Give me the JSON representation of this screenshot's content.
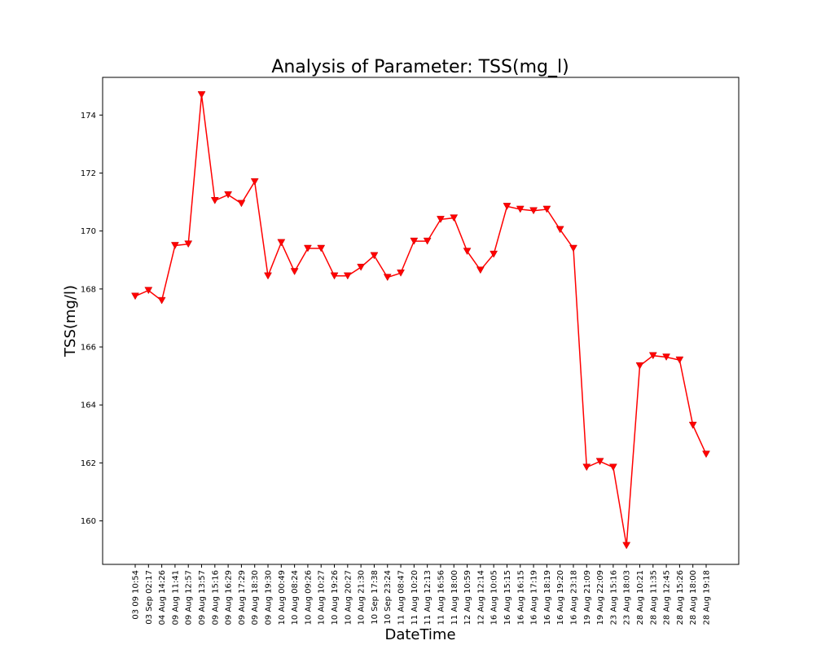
{
  "chart_data": {
    "type": "line",
    "title": "Analysis of Parameter: TSS(mg_l)",
    "xlabel": "DateTime",
    "ylabel": "TSS(mg/l)",
    "ylim": [
      158.5,
      175.3
    ],
    "yticks": [
      160,
      162,
      164,
      166,
      168,
      170,
      172,
      174
    ],
    "grid": false,
    "marker": "triangle-down",
    "colors": {
      "series": "#ff0000",
      "axes": "#000000",
      "background": "#ffffff"
    },
    "categories": [
      "03 09 10:54",
      "03 Sep 02:17",
      "04 Aug 14:26",
      "09 Aug 11:41",
      "09 Aug 12:57",
      "09 Aug 13:57",
      "09 Aug 15:16",
      "09 Aug 16:29",
      "09 Aug 17:29",
      "09 Aug 18:30",
      "09 Aug 19:30",
      "10 Aug 00:49",
      "10 Aug 08:24",
      "10 Aug 09:26",
      "10 Aug 10:27",
      "10 Aug 19:26",
      "10 Aug 20:27",
      "10 Aug 21:30",
      "10 Sep 17:38",
      "10 Sep 23:24",
      "11 Aug 08:47",
      "11 Aug 10:20",
      "11 Aug 12:13",
      "11 Aug 16:56",
      "11 Aug 18:00",
      "12 Aug 10:59",
      "12 Aug 12:14",
      "16 Aug 10:05",
      "16 Aug 15:15",
      "16 Aug 16:15",
      "16 Aug 17:19",
      "16 Aug 18:19",
      "16 Aug 19:20",
      "16 Aug 23:18",
      "19 Aug 21:09",
      "19 Aug 22:09",
      "23 Aug 15:16",
      "23 Aug 18:03",
      "28 Aug 10:21",
      "28 Aug 11:35",
      "28 Aug 12:45",
      "28 Aug 15:26",
      "28 Aug 18:00",
      "28 Aug 19:18"
    ],
    "series": [
      {
        "values": [
          167.75,
          167.95,
          167.6,
          169.5,
          169.55,
          174.7,
          171.05,
          171.25,
          170.95,
          171.7,
          168.45,
          169.6,
          168.6,
          169.4,
          169.4,
          168.45,
          168.45,
          168.75,
          169.15,
          168.4,
          168.55,
          169.65,
          169.65,
          170.4,
          170.45,
          169.3,
          168.65,
          169.2,
          170.85,
          170.75,
          170.7,
          170.75,
          170.05,
          169.4,
          161.85,
          162.05,
          161.85,
          159.15,
          165.35,
          165.7,
          165.65,
          165.55,
          163.3,
          162.3
        ]
      }
    ]
  }
}
